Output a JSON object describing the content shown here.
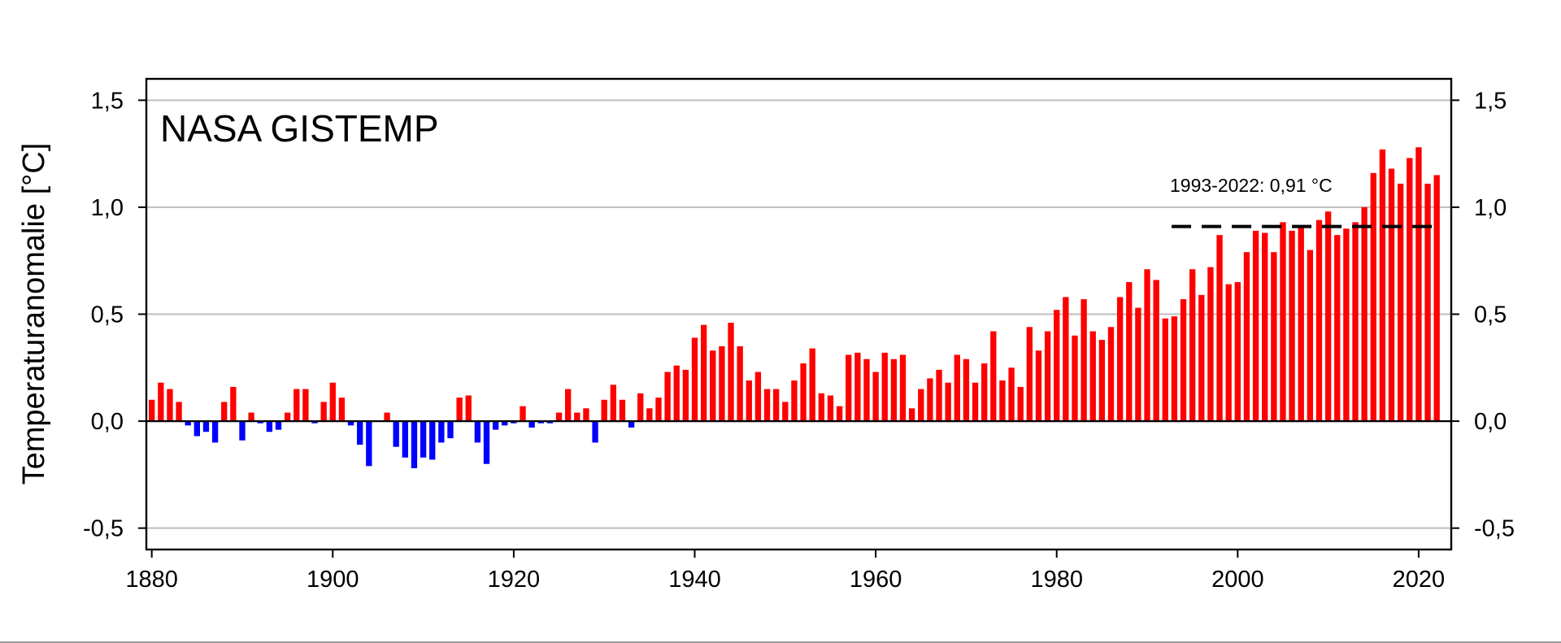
{
  "chart_data": {
    "type": "bar",
    "title": "NASA GISTEMP",
    "ylabel": "Temperaturanomalie [°C]",
    "xlabel": "",
    "xlim": [
      1879.4,
      2023.6
    ],
    "ylim": [
      -0.6,
      1.6
    ],
    "x_ticks": [
      1880,
      1900,
      1920,
      1940,
      1960,
      1980,
      2000,
      2020
    ],
    "x_tick_labels": [
      "1880",
      "1900",
      "1920",
      "1940",
      "1960",
      "1980",
      "2000",
      "2020"
    ],
    "y_ticks": [
      -0.5,
      0.0,
      0.5,
      1.0,
      1.5
    ],
    "y_tick_labels": [
      "-0,5",
      "0,0",
      "0,5",
      "1,0",
      "1,5"
    ],
    "grid": "horizontal",
    "colors": {
      "positive": "#ff0000",
      "negative": "#0000ff",
      "grid": "#bebebe",
      "zero_line": "#000000"
    },
    "x": [
      1880,
      1881,
      1882,
      1883,
      1884,
      1885,
      1886,
      1887,
      1888,
      1889,
      1890,
      1891,
      1892,
      1893,
      1894,
      1895,
      1896,
      1897,
      1898,
      1899,
      1900,
      1901,
      1902,
      1903,
      1904,
      1905,
      1906,
      1907,
      1908,
      1909,
      1910,
      1911,
      1912,
      1913,
      1914,
      1915,
      1916,
      1917,
      1918,
      1919,
      1920,
      1921,
      1922,
      1923,
      1924,
      1925,
      1926,
      1927,
      1928,
      1929,
      1930,
      1931,
      1932,
      1933,
      1934,
      1935,
      1936,
      1937,
      1938,
      1939,
      1940,
      1941,
      1942,
      1943,
      1944,
      1945,
      1946,
      1947,
      1948,
      1949,
      1950,
      1951,
      1952,
      1953,
      1954,
      1955,
      1956,
      1957,
      1958,
      1959,
      1960,
      1961,
      1962,
      1963,
      1964,
      1965,
      1966,
      1967,
      1968,
      1969,
      1970,
      1971,
      1972,
      1973,
      1974,
      1975,
      1976,
      1977,
      1978,
      1979,
      1980,
      1981,
      1982,
      1983,
      1984,
      1985,
      1986,
      1987,
      1988,
      1989,
      1990,
      1991,
      1992,
      1993,
      1994,
      1995,
      1996,
      1997,
      1998,
      1999,
      2000,
      2001,
      2002,
      2003,
      2004,
      2005,
      2006,
      2007,
      2008,
      2009,
      2010,
      2011,
      2012,
      2013,
      2014,
      2015,
      2016,
      2017,
      2018,
      2019,
      2020,
      2021,
      2022
    ],
    "values": [
      0.1,
      0.18,
      0.15,
      0.09,
      -0.02,
      -0.07,
      -0.05,
      -0.1,
      0.09,
      0.16,
      -0.09,
      0.04,
      -0.01,
      -0.05,
      -0.04,
      0.04,
      0.15,
      0.15,
      -0.01,
      0.09,
      0.18,
      0.11,
      -0.02,
      -0.11,
      -0.21,
      0.0,
      0.04,
      -0.12,
      -0.17,
      -0.22,
      -0.17,
      -0.18,
      -0.1,
      -0.08,
      0.11,
      0.12,
      -0.1,
      -0.2,
      -0.04,
      -0.02,
      -0.01,
      0.07,
      -0.03,
      -0.01,
      -0.01,
      0.04,
      0.15,
      0.04,
      0.06,
      -0.1,
      0.1,
      0.17,
      0.1,
      -0.03,
      0.13,
      0.06,
      0.11,
      0.23,
      0.26,
      0.24,
      0.39,
      0.45,
      0.33,
      0.35,
      0.46,
      0.35,
      0.19,
      0.23,
      0.15,
      0.15,
      0.09,
      0.19,
      0.27,
      0.34,
      0.13,
      0.12,
      0.07,
      0.31,
      0.32,
      0.29,
      0.23,
      0.32,
      0.29,
      0.31,
      0.06,
      0.15,
      0.2,
      0.24,
      0.18,
      0.31,
      0.29,
      0.18,
      0.27,
      0.42,
      0.19,
      0.25,
      0.16,
      0.44,
      0.33,
      0.42,
      0.52,
      0.58,
      0.4,
      0.57,
      0.42,
      0.38,
      0.44,
      0.58,
      0.65,
      0.53,
      0.71,
      0.66,
      0.48,
      0.49,
      0.57,
      0.71,
      0.59,
      0.72,
      0.87,
      0.64,
      0.65,
      0.79,
      0.89,
      0.88,
      0.79,
      0.93,
      0.89,
      0.91,
      0.8,
      0.94,
      0.98,
      0.87,
      0.9,
      0.93,
      1.0,
      1.16,
      1.27,
      1.18,
      1.11,
      1.23,
      1.28,
      1.11,
      1.15
    ],
    "reference_line": {
      "label": "1993-2022: 0,91 °C",
      "from": 1993,
      "to": 2022,
      "value": 0.91,
      "style": "dashed"
    }
  }
}
